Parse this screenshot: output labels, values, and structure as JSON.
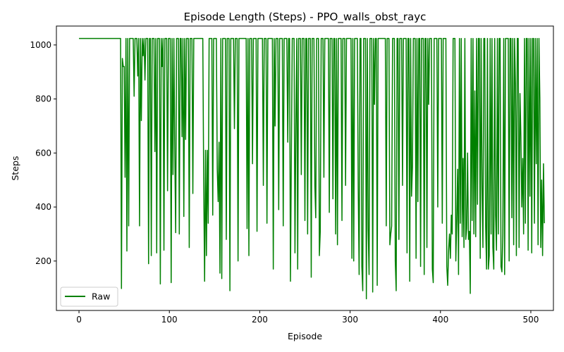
{
  "chart_data": {
    "type": "line",
    "title": "Episode Length (Steps) - PPO_walls_obst_rayc",
    "xlabel": "Episode",
    "ylabel": "Steps",
    "xlim": [
      -25,
      525
    ],
    "ylim": [
      17,
      1070
    ],
    "x_ticks": [
      0,
      100,
      200,
      300,
      400,
      500
    ],
    "y_ticks": [
      200,
      400,
      600,
      800,
      1000
    ],
    "grid": false,
    "legend_position": "lower-left",
    "series": [
      {
        "name": "Raw",
        "color": "#008000",
        "x_start": 0,
        "values": [
          1024,
          1024,
          1024,
          1024,
          1024,
          1024,
          1024,
          1024,
          1024,
          1024,
          1024,
          1024,
          1024,
          1024,
          1024,
          1024,
          1024,
          1024,
          1024,
          1024,
          1024,
          1024,
          1024,
          1024,
          1024,
          1024,
          1024,
          1024,
          1024,
          1024,
          1024,
          1024,
          1024,
          1024,
          1024,
          1024,
          1024,
          1024,
          1024,
          1024,
          1024,
          1024,
          1024,
          1024,
          1024,
          1024,
          1024,
          98,
          950,
          920,
          920,
          510,
          1024,
          237,
          1024,
          330,
          1024,
          1024,
          1024,
          1024,
          1024,
          810,
          1024,
          1024,
          1024,
          885,
          1024,
          330,
          1024,
          720,
          1024,
          960,
          1024,
          870,
          1024,
          1024,
          1024,
          190,
          1024,
          1024,
          220,
          1024,
          1024,
          1024,
          605,
          1024,
          230,
          1024,
          1024,
          1024,
          115,
          1024,
          920,
          1024,
          240,
          1024,
          1024,
          1024,
          460,
          1024,
          1024,
          1024,
          120,
          1024,
          520,
          1024,
          600,
          305,
          1024,
          1024,
          1024,
          300,
          1024,
          1024,
          660,
          1024,
          365,
          1024,
          650,
          1024,
          1024,
          1024,
          250,
          1024,
          1024,
          1024,
          450,
          1024,
          1024,
          1024,
          1024,
          1024,
          1024,
          1024,
          1024,
          1024,
          1024,
          1024,
          490,
          125,
          610,
          220,
          610,
          340,
          1024,
          1024,
          1024,
          1024,
          370,
          1024,
          1024,
          1024,
          1024,
          540,
          420,
          640,
          155,
          1024,
          135,
          1024,
          1024,
          1024,
          1024,
          280,
          1024,
          1024,
          1024,
          90,
          1024,
          1024,
          1024,
          1024,
          690,
          1024,
          1024,
          1024,
          200,
          1024,
          1024,
          1024,
          1024,
          1024,
          1024,
          1024,
          1024,
          1024,
          320,
          1024,
          220,
          1024,
          1024,
          1024,
          560,
          1024,
          1024,
          1024,
          1024,
          310,
          1024,
          1024,
          1024,
          1024,
          1024,
          1024,
          480,
          1024,
          1024,
          1024,
          340,
          1024,
          1024,
          1024,
          1024,
          1024,
          1024,
          170,
          1024,
          700,
          1024,
          1024,
          1024,
          390,
          1024,
          1024,
          1024,
          1024,
          330,
          1024,
          1024,
          1024,
          1024,
          640,
          1024,
          1024,
          125,
          590,
          1024,
          1024,
          1024,
          230,
          700,
          1024,
          170,
          1024,
          1024,
          1024,
          520,
          1024,
          1024,
          1024,
          350,
          1024,
          1024,
          300,
          1024,
          1024,
          1024,
          140,
          1024,
          1024,
          1024,
          480,
          360,
          1024,
          1024,
          1024,
          220,
          310,
          1024,
          1024,
          1024,
          510,
          1024,
          1024,
          1024,
          1024,
          1024,
          380,
          1024,
          1024,
          1024,
          430,
          1024,
          1024,
          300,
          1024,
          260,
          1024,
          1024,
          1024,
          1024,
          350,
          1024,
          1024,
          1024,
          480,
          1024,
          1024,
          1024,
          1024,
          1024,
          1024,
          210,
          1024,
          200,
          1024,
          1024,
          1024,
          1024,
          470,
          150,
          1024,
          1024,
          180,
          90,
          1024,
          1024,
          1024,
          60,
          1024,
          320,
          150,
          1024,
          1024,
          1024,
          85,
          1024,
          780,
          1024,
          1024,
          110,
          1024,
          1024,
          1024,
          1024,
          1024,
          1024,
          1024,
          1024,
          1024,
          330,
          1024,
          1024,
          1024,
          260,
          300,
          330,
          1024,
          1024,
          1024,
          200,
          90,
          1024,
          1024,
          280,
          1024,
          1024,
          1024,
          480,
          1024,
          1024,
          1024,
          1024,
          230,
          1024,
          1024,
          125,
          1024,
          440,
          550,
          1024,
          1024,
          1024,
          210,
          1024,
          420,
          1024,
          1024,
          180,
          1024,
          1024,
          1024,
          150,
          1024,
          1024,
          250,
          1024,
          780,
          1024,
          1024,
          1024,
          170,
          120,
          1024,
          1024,
          1024,
          1024,
          400,
          1024,
          1024,
          1024,
          1024,
          340,
          1024,
          1024,
          1024,
          1024,
          180,
          110,
          240,
          300,
          210,
          370,
          300,
          1024,
          1024,
          1024,
          200,
          350,
          540,
          150,
          1024,
          340,
          1024,
          290,
          580,
          250,
          1024,
          280,
          320,
          600,
          280,
          310,
          80,
          1024,
          350,
          1024,
          300,
          830,
          290,
          1024,
          410,
          1024,
          1024,
          210,
          1024,
          480,
          250,
          1024,
          1024,
          330,
          170,
          1024,
          170,
          220,
          1024,
          300,
          1024,
          250,
          170,
          1024,
          370,
          240,
          1024,
          300,
          1024,
          1024,
          180,
          160,
          300,
          1024,
          150,
          1024,
          1024,
          1024,
          1024,
          200,
          1024,
          1024,
          360,
          1024,
          260,
          1024,
          850,
          220,
          1024,
          1024,
          250,
          820,
          660,
          400,
          580,
          300,
          1024,
          340,
          1024,
          1024,
          240,
          1024,
          440,
          1024,
          230,
          1024,
          1024,
          340,
          1024,
          560,
          1024,
          260,
          1024,
          800,
          250,
          500,
          220,
          560,
          340
        ]
      }
    ]
  }
}
